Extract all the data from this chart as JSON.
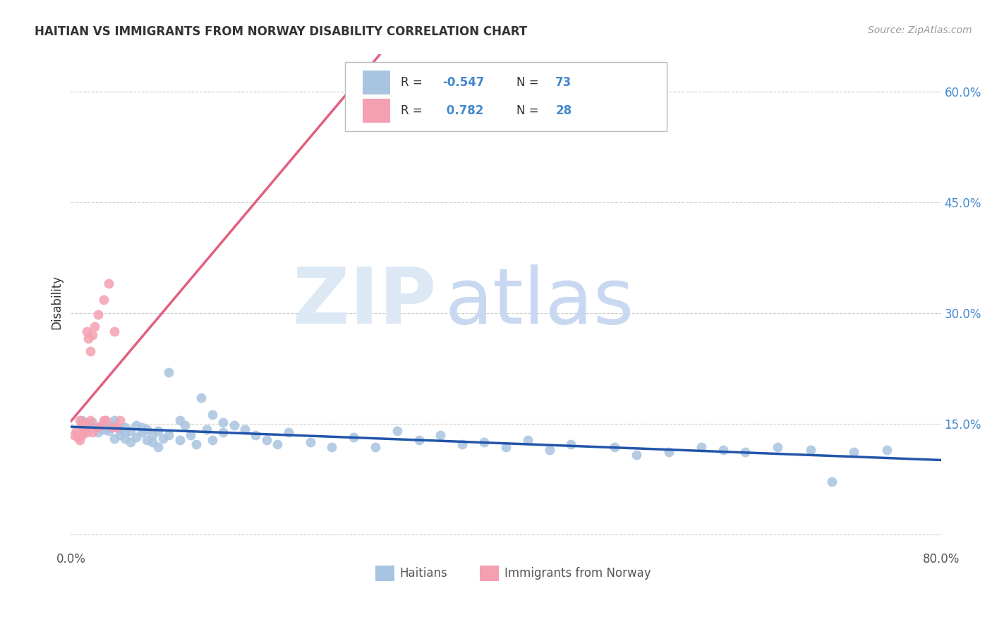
{
  "title": "HAITIAN VS IMMIGRANTS FROM NORWAY DISABILITY CORRELATION CHART",
  "source": "Source: ZipAtlas.com",
  "ylabel": "Disability",
  "y_ticks": [
    0.0,
    0.15,
    0.3,
    0.45,
    0.6
  ],
  "y_tick_labels": [
    "",
    "15.0%",
    "30.0%",
    "45.0%",
    "60.0%"
  ],
  "xlim": [
    0.0,
    0.8
  ],
  "ylim": [
    -0.02,
    0.65
  ],
  "haitian_R": -0.547,
  "haitian_N": 73,
  "norway_R": 0.782,
  "norway_N": 28,
  "haitian_color": "#a8c4e0",
  "haitian_line_color": "#2255aa",
  "norway_color": "#f4a0b0",
  "norway_line_color": "#e06080",
  "watermark_zip_color": "#dde8f5",
  "watermark_atlas_color": "#c8d8f0",
  "background_color": "#ffffff",
  "legend_R1_label": "R = -0.547",
  "legend_N1_label": "N = 73",
  "legend_R2_label": "R =  0.782",
  "legend_N2_label": "N = 28",
  "legend_label1": "Haitians",
  "legend_label2": "Immigrants from Norway",
  "haitian_x": [
    0.01,
    0.015,
    0.02,
    0.025,
    0.025,
    0.03,
    0.03,
    0.035,
    0.035,
    0.04,
    0.04,
    0.04,
    0.045,
    0.045,
    0.05,
    0.05,
    0.05,
    0.055,
    0.055,
    0.06,
    0.06,
    0.065,
    0.065,
    0.07,
    0.07,
    0.075,
    0.075,
    0.08,
    0.08,
    0.085,
    0.09,
    0.09,
    0.1,
    0.1,
    0.105,
    0.11,
    0.115,
    0.12,
    0.125,
    0.13,
    0.13,
    0.14,
    0.14,
    0.15,
    0.16,
    0.17,
    0.18,
    0.19,
    0.2,
    0.22,
    0.24,
    0.26,
    0.28,
    0.3,
    0.32,
    0.34,
    0.36,
    0.38,
    0.4,
    0.42,
    0.44,
    0.46,
    0.5,
    0.52,
    0.55,
    0.58,
    0.6,
    0.62,
    0.65,
    0.68,
    0.7,
    0.72,
    0.75
  ],
  "haitian_y": [
    0.155,
    0.148,
    0.152,
    0.145,
    0.138,
    0.142,
    0.15,
    0.14,
    0.145,
    0.13,
    0.148,
    0.155,
    0.135,
    0.142,
    0.138,
    0.145,
    0.13,
    0.14,
    0.125,
    0.132,
    0.148,
    0.138,
    0.145,
    0.128,
    0.142,
    0.135,
    0.125,
    0.14,
    0.118,
    0.13,
    0.22,
    0.135,
    0.155,
    0.128,
    0.148,
    0.135,
    0.122,
    0.185,
    0.142,
    0.162,
    0.128,
    0.152,
    0.138,
    0.148,
    0.142,
    0.135,
    0.128,
    0.122,
    0.138,
    0.125,
    0.118,
    0.132,
    0.118,
    0.14,
    0.128,
    0.135,
    0.122,
    0.125,
    0.118,
    0.128,
    0.115,
    0.122,
    0.118,
    0.108,
    0.112,
    0.118,
    0.115,
    0.112,
    0.118,
    0.115,
    0.072,
    0.112,
    0.115
  ],
  "norway_x": [
    0.003,
    0.005,
    0.006,
    0.008,
    0.008,
    0.01,
    0.01,
    0.012,
    0.013,
    0.015,
    0.015,
    0.016,
    0.018,
    0.018,
    0.02,
    0.02,
    0.022,
    0.024,
    0.025,
    0.028,
    0.03,
    0.03,
    0.032,
    0.035,
    0.038,
    0.04,
    0.042,
    0.045
  ],
  "norway_y": [
    0.135,
    0.14,
    0.132,
    0.155,
    0.128,
    0.148,
    0.135,
    0.142,
    0.152,
    0.275,
    0.138,
    0.265,
    0.248,
    0.155,
    0.27,
    0.138,
    0.282,
    0.145,
    0.298,
    0.148,
    0.318,
    0.155,
    0.155,
    0.34,
    0.145,
    0.275,
    0.145,
    0.155
  ],
  "norway_line_xlim": [
    0.0,
    0.8
  ]
}
